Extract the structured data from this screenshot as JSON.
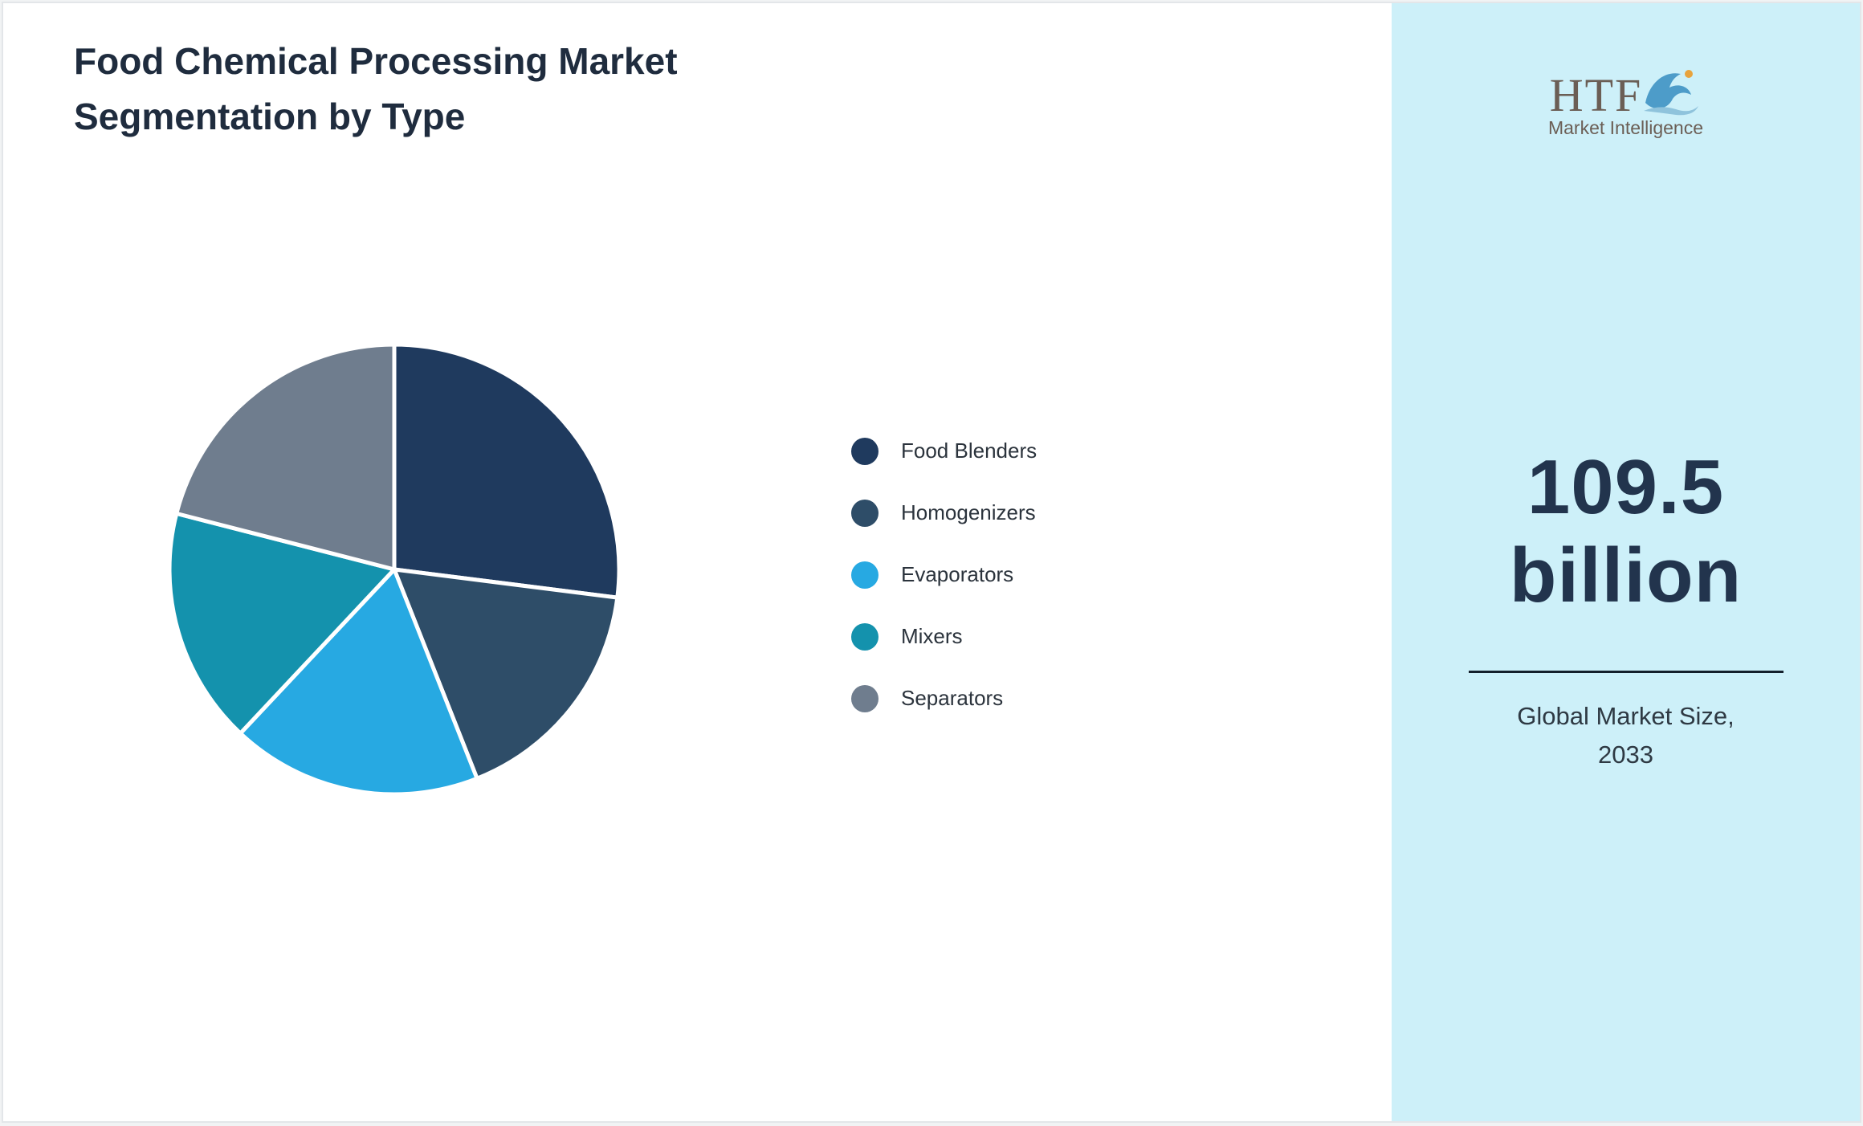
{
  "title": {
    "line1": "Food Chemical Processing Market",
    "line2": "Segmentation by Type"
  },
  "chart_data": {
    "type": "pie",
    "title": "Food Chemical Processing Market Segmentation by Type",
    "categories": [
      "Food Blenders",
      "Homogenizers",
      "Evaporators",
      "Mixers",
      "Separators"
    ],
    "values": [
      27,
      17,
      18,
      17,
      21
    ],
    "units": "percent (estimated from slice angles; no numeric labels shown)",
    "value_labels_shown": false,
    "colors": [
      "#1f3a5e",
      "#2e4d68",
      "#27a9e2",
      "#1492ad",
      "#6f7d8e"
    ],
    "slice_border_color": "#ffffff",
    "start_angle_deg": 0,
    "legend_position": "right"
  },
  "sidebar": {
    "background": "#cdf0f9",
    "logo": {
      "text": "HTF",
      "subtext": "Market Intelligence",
      "dolphin_color": "#4d9cc9",
      "splash_color": "#8fc3dc",
      "accent_color": "#e8a33d"
    },
    "market_size_value": "109.5",
    "market_size_unit": "billion",
    "caption_line1": "Global Market Size,",
    "caption_line2": "2033"
  }
}
